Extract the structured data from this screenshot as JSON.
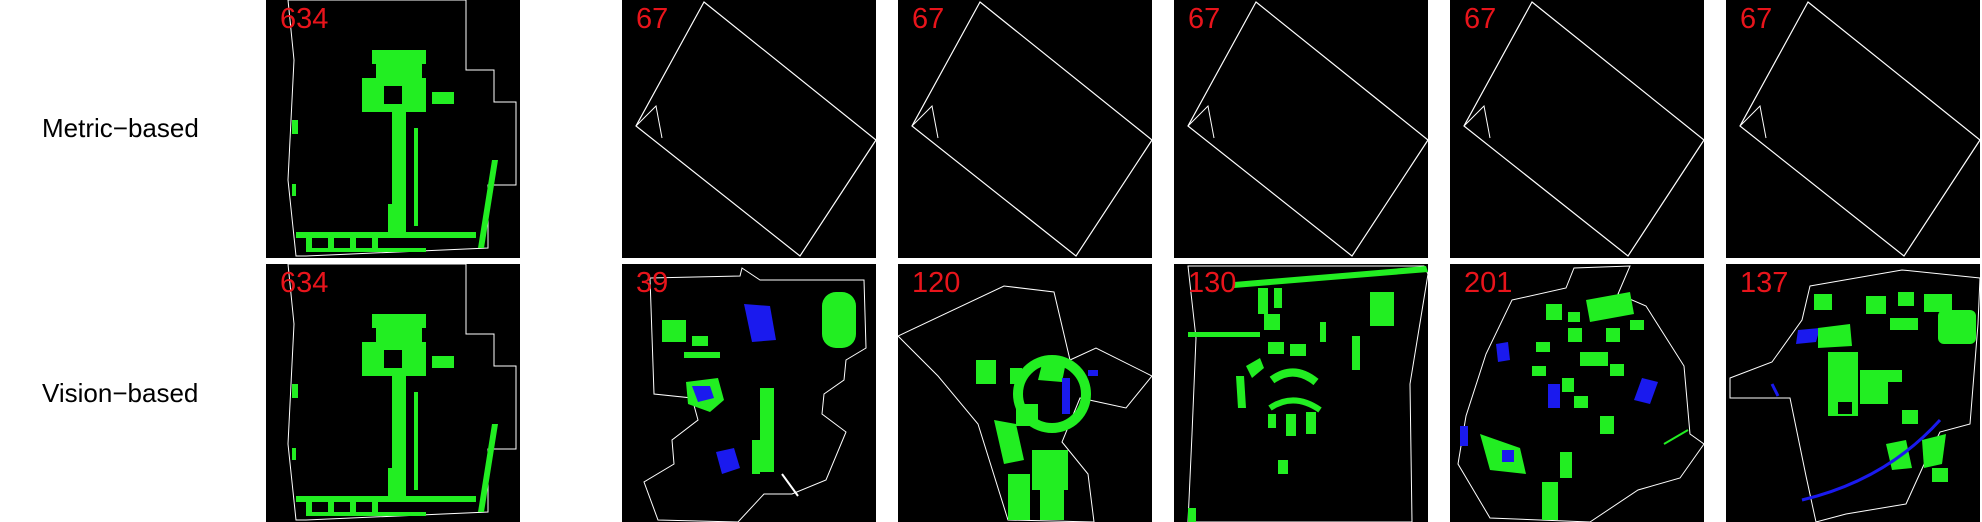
{
  "colors": {
    "background": "#ffffff",
    "tile_background": "#000000",
    "id_label": "#e8141b",
    "green_area": "#22ee22",
    "blue_area": "#1a1aee",
    "boundary": "#ffffff"
  },
  "rows": [
    {
      "label": "Metric−based",
      "tiles": [
        {
          "id": "634",
          "shape": "query"
        },
        {
          "id": "67",
          "shape": "square"
        },
        {
          "id": "67",
          "shape": "square"
        },
        {
          "id": "67",
          "shape": "square"
        },
        {
          "id": "67",
          "shape": "square"
        },
        {
          "id": "67",
          "shape": "square"
        }
      ]
    },
    {
      "label": "Vision−based",
      "tiles": [
        {
          "id": "634",
          "shape": "query"
        },
        {
          "id": "39",
          "shape": "v39"
        },
        {
          "id": "120",
          "shape": "v120"
        },
        {
          "id": "130",
          "shape": "v130"
        },
        {
          "id": "201",
          "shape": "v201"
        },
        {
          "id": "137",
          "shape": "v137"
        }
      ]
    }
  ]
}
